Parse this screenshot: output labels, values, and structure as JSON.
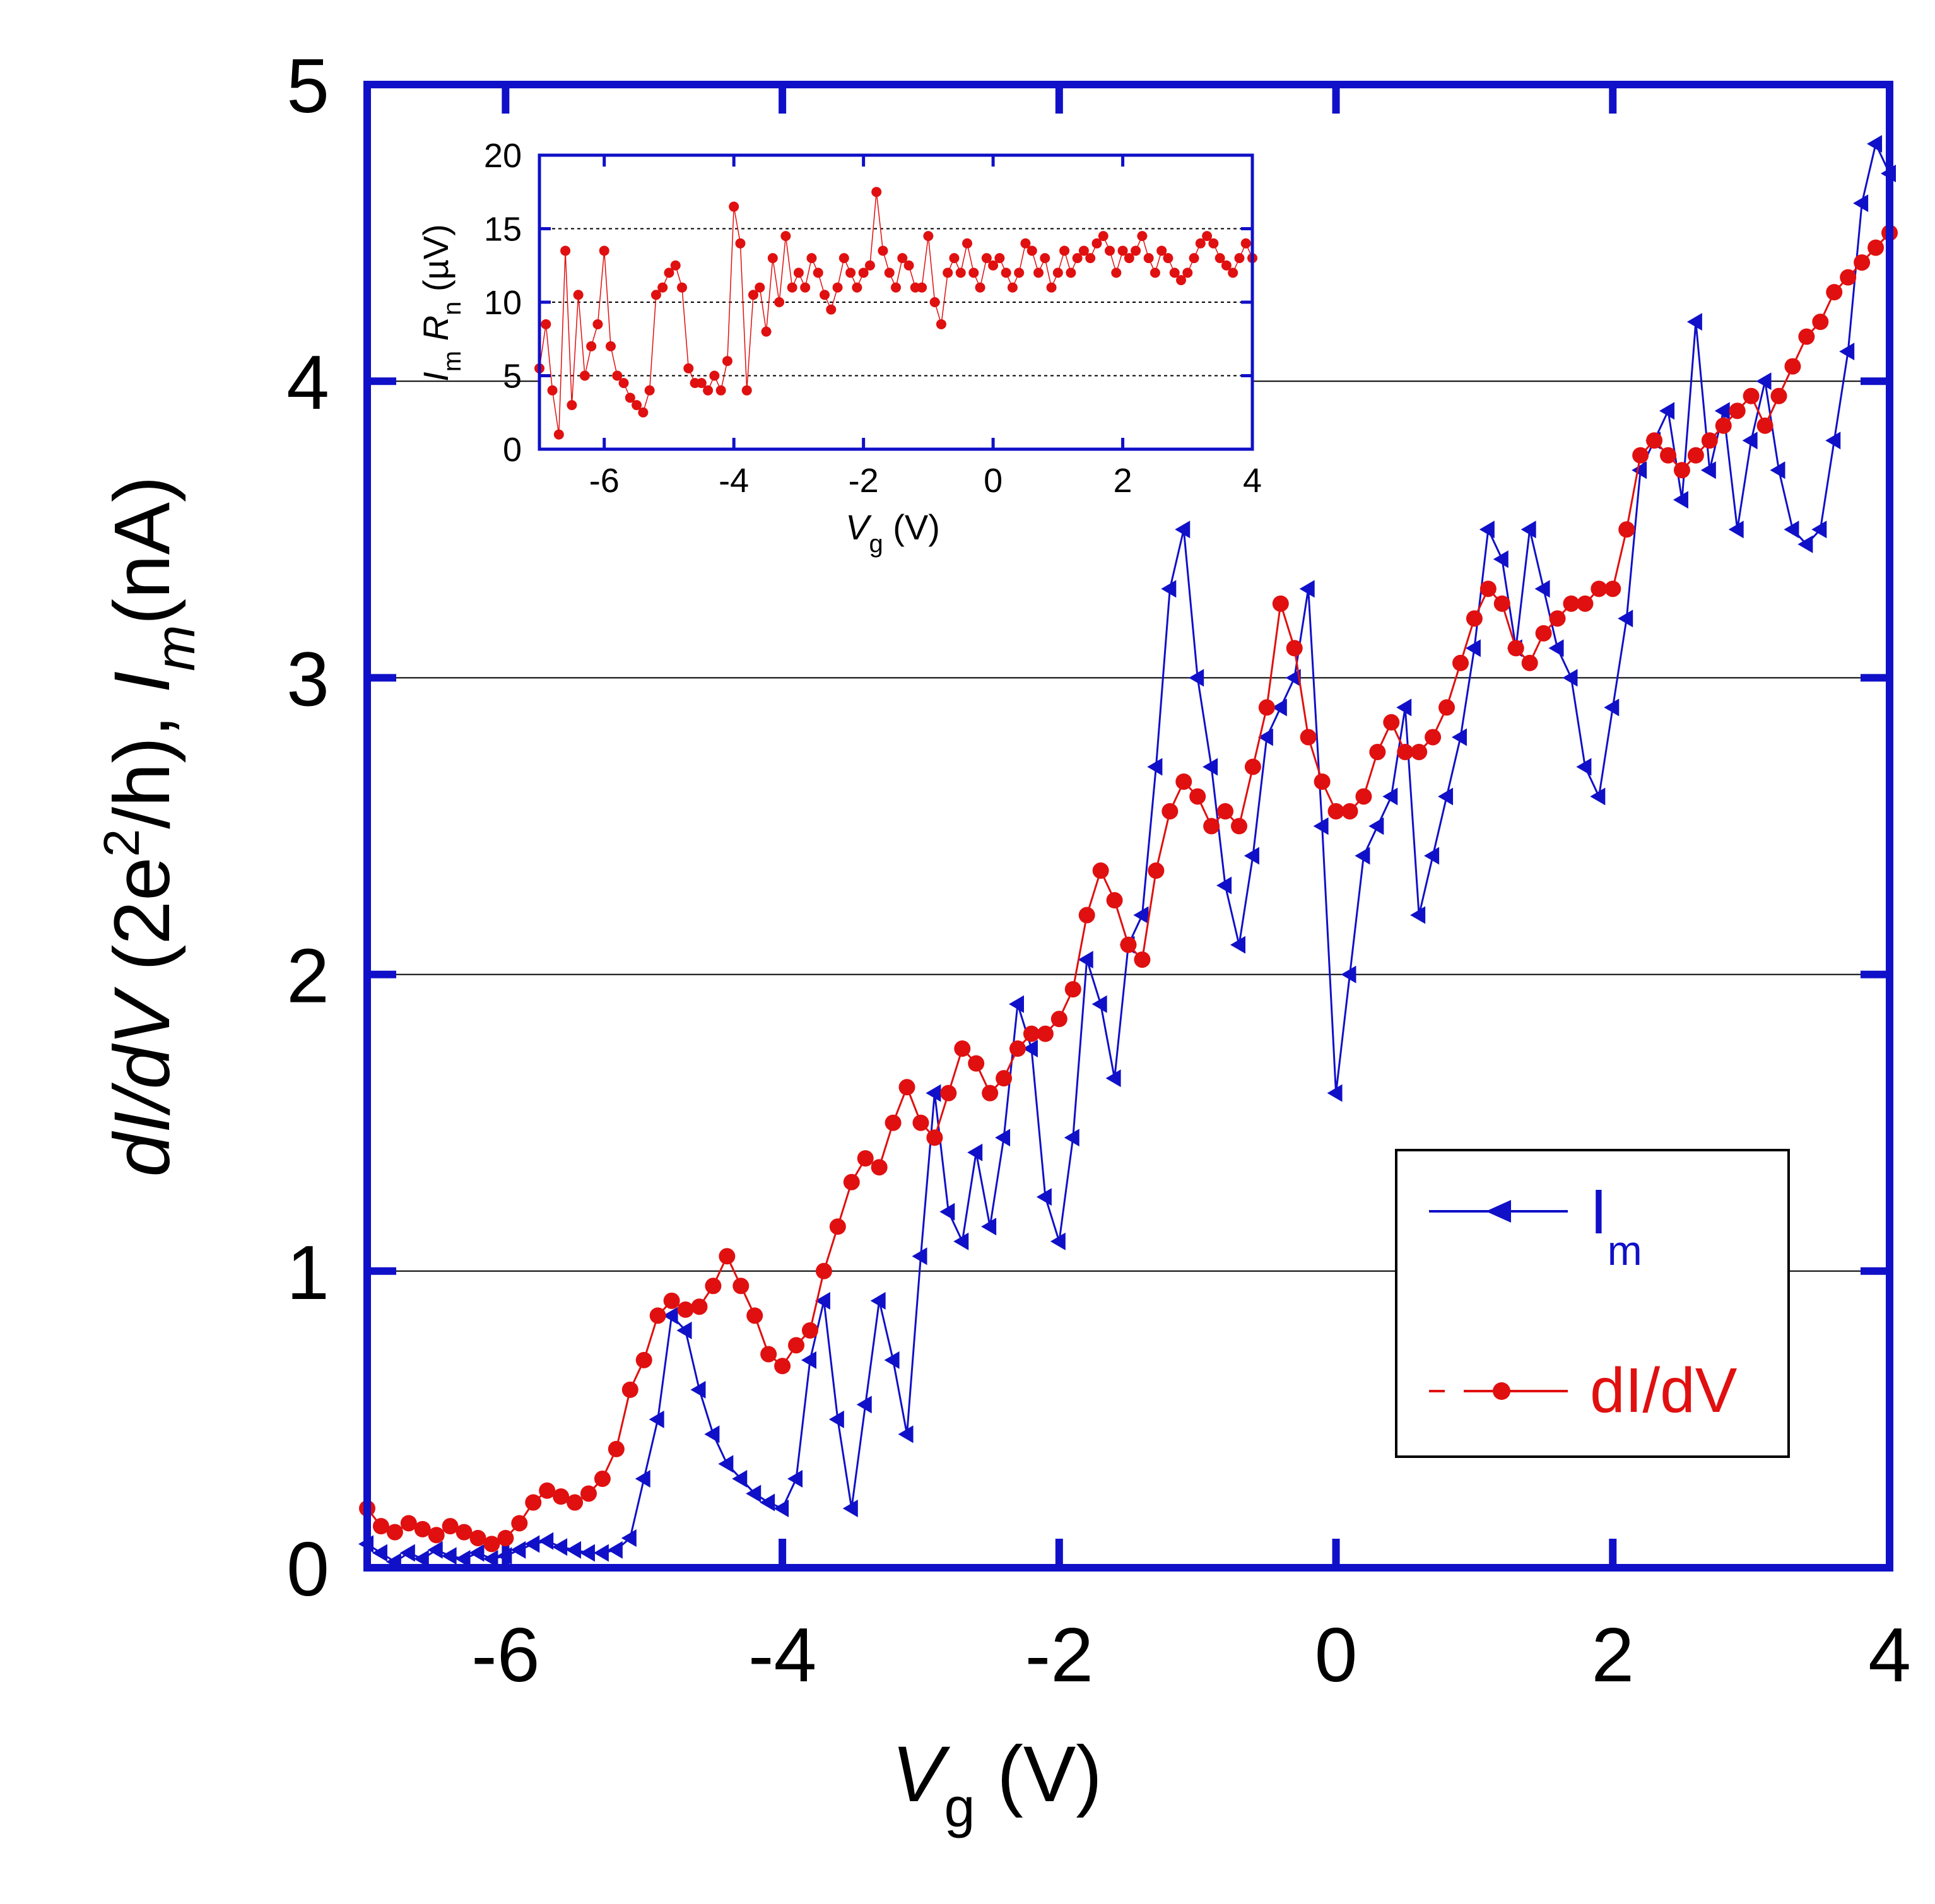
{
  "main_chart": {
    "type": "line",
    "x_range": [
      -7,
      4
    ],
    "y_range": [
      0,
      5
    ],
    "x_ticks": [
      "-6",
      "-4",
      "-2",
      "0",
      "2",
      "4"
    ],
    "x_tick_values": [
      -6,
      -4,
      -2,
      0,
      2,
      4
    ],
    "y_ticks": [
      "0",
      "1",
      "2",
      "3",
      "4",
      "5"
    ],
    "y_tick_values": [
      0,
      1,
      2,
      3,
      4,
      5
    ],
    "gridlines_y": [
      1,
      2,
      3,
      4
    ],
    "xlabel": {
      "main": "V",
      "sub": "g",
      "unit": " (V)"
    },
    "ylabel": {
      "part1": "dI/dV",
      "part2": " (2e",
      "sup": "2",
      "part3": "/h), ",
      "part4": "I",
      "sub": "m",
      "part5": "(nA)"
    },
    "legend": {
      "im": {
        "label": "I",
        "sub": "m"
      },
      "didv": {
        "label": "dI/dV"
      }
    },
    "colors": {
      "frame": "#1010C8",
      "im": "#1010C8",
      "didv": "#E01010",
      "grid": "#000000"
    }
  },
  "inset_chart": {
    "type": "scatter",
    "x_range": [
      -7,
      4
    ],
    "y_range": [
      0,
      20
    ],
    "x_ticks": [
      "-6",
      "-4",
      "-2",
      "0",
      "2",
      "4"
    ],
    "x_tick_values": [
      -6,
      -4,
      -2,
      0,
      2,
      4
    ],
    "y_ticks": [
      "0",
      "5",
      "10",
      "15",
      "20"
    ],
    "y_tick_values": [
      0,
      5,
      10,
      15,
      20
    ],
    "gridlines_y": [
      5,
      10,
      15
    ],
    "xlabel": {
      "main": "V",
      "sub": "g",
      "unit": " (V)"
    },
    "ylabel": {
      "i": "I",
      "isub": "m",
      "r": "R",
      "rsub": "n",
      "unit": " (µV)"
    },
    "colors": {
      "frame": "#1010C8",
      "series": "#E01010"
    }
  },
  "chart_data": [
    {
      "type": "line",
      "title": "",
      "xlabel": "Vg (V)",
      "ylabel": "dI/dV (2e2/h), Im(nA)",
      "xlim": [
        -7,
        4
      ],
      "ylim": [
        0,
        5
      ],
      "series": [
        {
          "name": "Im",
          "x": [
            -7.0,
            -6.9,
            -6.8,
            -6.7,
            -6.6,
            -6.5,
            -6.4,
            -6.3,
            -6.2,
            -6.1,
            -6.0,
            -5.9,
            -5.8,
            -5.7,
            -5.6,
            -5.5,
            -5.4,
            -5.3,
            -5.2,
            -5.1,
            -5.0,
            -4.9,
            -4.8,
            -4.7,
            -4.6,
            -4.5,
            -4.4,
            -4.3,
            -4.2,
            -4.1,
            -4.0,
            -3.9,
            -3.8,
            -3.7,
            -3.6,
            -3.5,
            -3.4,
            -3.3,
            -3.2,
            -3.1,
            -3.0,
            -2.9,
            -2.8,
            -2.7,
            -2.6,
            -2.5,
            -2.4,
            -2.3,
            -2.2,
            -2.1,
            -2.0,
            -1.9,
            -1.8,
            -1.7,
            -1.6,
            -1.5,
            -1.4,
            -1.3,
            -1.2,
            -1.1,
            -1.0,
            -0.9,
            -0.8,
            -0.7,
            -0.6,
            -0.5,
            -0.4,
            -0.3,
            -0.2,
            -0.1,
            0.0,
            0.1,
            0.2,
            0.3,
            0.4,
            0.5,
            0.6,
            0.7,
            0.8,
            0.9,
            1.0,
            1.1,
            1.2,
            1.3,
            1.4,
            1.5,
            1.6,
            1.7,
            1.8,
            1.9,
            2.0,
            2.1,
            2.2,
            2.3,
            2.4,
            2.5,
            2.6,
            2.7,
            2.8,
            2.9,
            3.0,
            3.1,
            3.2,
            3.3,
            3.4,
            3.5,
            3.6,
            3.7,
            3.8,
            3.9,
            4.0
          ],
          "values": [
            0.08,
            0.05,
            0.02,
            0.05,
            0.03,
            0.06,
            0.04,
            0.03,
            0.05,
            0.03,
            0.04,
            0.06,
            0.08,
            0.09,
            0.07,
            0.06,
            0.05,
            0.05,
            0.06,
            0.1,
            0.3,
            0.5,
            0.85,
            0.8,
            0.6,
            0.45,
            0.35,
            0.3,
            0.25,
            0.22,
            0.2,
            0.3,
            0.7,
            0.9,
            0.5,
            0.2,
            0.55,
            0.9,
            0.7,
            0.45,
            1.05,
            1.6,
            1.2,
            1.1,
            1.4,
            1.15,
            1.45,
            1.9,
            1.75,
            1.25,
            1.1,
            1.45,
            2.05,
            1.9,
            1.65,
            2.1,
            2.2,
            2.7,
            3.3,
            3.5,
            3.0,
            2.7,
            2.3,
            2.1,
            2.4,
            2.8,
            2.9,
            3.0,
            3.3,
            2.5,
            1.6,
            2.0,
            2.4,
            2.5,
            2.6,
            2.9,
            2.2,
            2.4,
            2.6,
            2.8,
            3.1,
            3.5,
            3.4,
            3.1,
            3.5,
            3.3,
            3.1,
            3.0,
            2.7,
            2.6,
            2.9,
            3.2,
            3.7,
            3.8,
            3.9,
            3.6,
            4.2,
            3.7,
            3.9,
            3.5,
            3.8,
            4.0,
            3.7,
            3.5,
            3.45,
            3.5,
            3.8,
            4.1,
            4.6,
            4.8,
            4.7
          ],
          "color": "#1010C8"
        },
        {
          "name": "dI/dV",
          "x": [
            -7.0,
            -6.9,
            -6.8,
            -6.7,
            -6.6,
            -6.5,
            -6.4,
            -6.3,
            -6.2,
            -6.1,
            -6.0,
            -5.9,
            -5.8,
            -5.7,
            -5.6,
            -5.5,
            -5.4,
            -5.3,
            -5.2,
            -5.1,
            -5.0,
            -4.9,
            -4.8,
            -4.7,
            -4.6,
            -4.5,
            -4.4,
            -4.3,
            -4.2,
            -4.1,
            -4.0,
            -3.9,
            -3.8,
            -3.7,
            -3.6,
            -3.5,
            -3.4,
            -3.3,
            -3.2,
            -3.1,
            -3.0,
            -2.9,
            -2.8,
            -2.7,
            -2.6,
            -2.5,
            -2.4,
            -2.3,
            -2.2,
            -2.1,
            -2.0,
            -1.9,
            -1.8,
            -1.7,
            -1.6,
            -1.5,
            -1.4,
            -1.3,
            -1.2,
            -1.1,
            -1.0,
            -0.9,
            -0.8,
            -0.7,
            -0.6,
            -0.5,
            -0.4,
            -0.3,
            -0.2,
            -0.1,
            0.0,
            0.1,
            0.2,
            0.3,
            0.4,
            0.5,
            0.6,
            0.7,
            0.8,
            0.9,
            1.0,
            1.1,
            1.2,
            1.3,
            1.4,
            1.5,
            1.6,
            1.7,
            1.8,
            1.9,
            2.0,
            2.1,
            2.2,
            2.3,
            2.4,
            2.5,
            2.6,
            2.7,
            2.8,
            2.9,
            3.0,
            3.1,
            3.2,
            3.3,
            3.4,
            3.5,
            3.6,
            3.7,
            3.8,
            3.9,
            4.0
          ],
          "values": [
            0.2,
            0.14,
            0.12,
            0.15,
            0.13,
            0.11,
            0.14,
            0.12,
            0.1,
            0.08,
            0.1,
            0.15,
            0.22,
            0.26,
            0.24,
            0.22,
            0.25,
            0.3,
            0.4,
            0.6,
            0.7,
            0.85,
            0.9,
            0.87,
            0.88,
            0.95,
            1.05,
            0.95,
            0.85,
            0.72,
            0.68,
            0.75,
            0.8,
            1.0,
            1.15,
            1.3,
            1.38,
            1.35,
            1.5,
            1.62,
            1.5,
            1.45,
            1.6,
            1.75,
            1.7,
            1.6,
            1.65,
            1.75,
            1.8,
            1.8,
            1.85,
            1.95,
            2.2,
            2.35,
            2.25,
            2.1,
            2.05,
            2.35,
            2.55,
            2.65,
            2.6,
            2.5,
            2.55,
            2.5,
            2.7,
            2.9,
            3.25,
            3.1,
            2.8,
            2.65,
            2.55,
            2.55,
            2.6,
            2.75,
            2.85,
            2.75,
            2.75,
            2.8,
            2.9,
            3.05,
            3.2,
            3.3,
            3.25,
            3.1,
            3.05,
            3.15,
            3.2,
            3.25,
            3.25,
            3.3,
            3.3,
            3.5,
            3.75,
            3.8,
            3.75,
            3.7,
            3.75,
            3.8,
            3.85,
            3.9,
            3.95,
            3.85,
            3.95,
            4.05,
            4.15,
            4.2,
            4.3,
            4.35,
            4.4,
            4.45,
            4.5
          ],
          "color": "#E01010"
        }
      ]
    },
    {
      "type": "scatter",
      "title": "",
      "xlabel": "Vg (V)",
      "ylabel": "Im Rn (µV)",
      "xlim": [
        -7,
        4
      ],
      "ylim": [
        0,
        20
      ],
      "series": [
        {
          "name": "Im Rn",
          "x": [
            -7.0,
            -6.9,
            -6.8,
            -6.7,
            -6.6,
            -6.5,
            -6.4,
            -6.3,
            -6.2,
            -6.1,
            -6.0,
            -5.9,
            -5.8,
            -5.7,
            -5.6,
            -5.5,
            -5.4,
            -5.3,
            -5.2,
            -5.1,
            -5.0,
            -4.9,
            -4.8,
            -4.7,
            -4.6,
            -4.5,
            -4.4,
            -4.3,
            -4.2,
            -4.1,
            -4.0,
            -3.9,
            -3.8,
            -3.7,
            -3.6,
            -3.5,
            -3.4,
            -3.3,
            -3.2,
            -3.1,
            -3.0,
            -2.9,
            -2.8,
            -2.7,
            -2.6,
            -2.5,
            -2.4,
            -2.3,
            -2.2,
            -2.1,
            -2.0,
            -1.9,
            -1.8,
            -1.7,
            -1.6,
            -1.5,
            -1.4,
            -1.3,
            -1.2,
            -1.1,
            -1.0,
            -0.9,
            -0.8,
            -0.7,
            -0.6,
            -0.5,
            -0.4,
            -0.3,
            -0.2,
            -0.1,
            0.0,
            0.1,
            0.2,
            0.3,
            0.4,
            0.5,
            0.6,
            0.7,
            0.8,
            0.9,
            1.0,
            1.1,
            1.2,
            1.3,
            1.4,
            1.5,
            1.6,
            1.7,
            1.8,
            1.9,
            2.0,
            2.1,
            2.2,
            2.3,
            2.4,
            2.5,
            2.6,
            2.7,
            2.8,
            2.9,
            3.0,
            3.1,
            3.2,
            3.3,
            3.4,
            3.5,
            3.6,
            3.7,
            3.8,
            3.9,
            4.0
          ],
          "values": [
            5.5,
            8.5,
            4,
            1,
            13.5,
            3,
            10.5,
            5,
            7,
            8.5,
            13.5,
            7,
            5,
            4.5,
            3.5,
            3,
            2.5,
            4,
            10.5,
            11,
            12,
            12.5,
            11,
            5.5,
            4.5,
            4.5,
            4,
            5,
            4,
            6,
            16.5,
            14,
            4,
            10.5,
            11,
            8,
            13,
            10,
            14.5,
            11,
            12,
            11,
            13,
            12,
            10.5,
            9.5,
            11,
            13,
            12,
            11,
            12,
            12.5,
            17.5,
            13.5,
            12,
            11,
            13,
            12.5,
            11,
            11,
            14.5,
            10,
            8.5,
            12,
            13,
            12,
            14,
            12,
            11,
            13,
            12.5,
            13,
            12,
            11,
            12,
            14,
            13.5,
            12,
            13,
            11,
            12,
            13.5,
            12,
            13,
            13.5,
            13,
            14,
            14.5,
            13.5,
            12,
            13.5,
            13,
            13.5,
            14.5,
            13,
            12,
            13.5,
            13,
            12,
            11.5,
            12,
            13,
            14,
            14.5,
            14,
            13,
            12.5,
            12,
            13,
            14,
            13
          ],
          "color": "#E01010"
        }
      ]
    }
  ]
}
